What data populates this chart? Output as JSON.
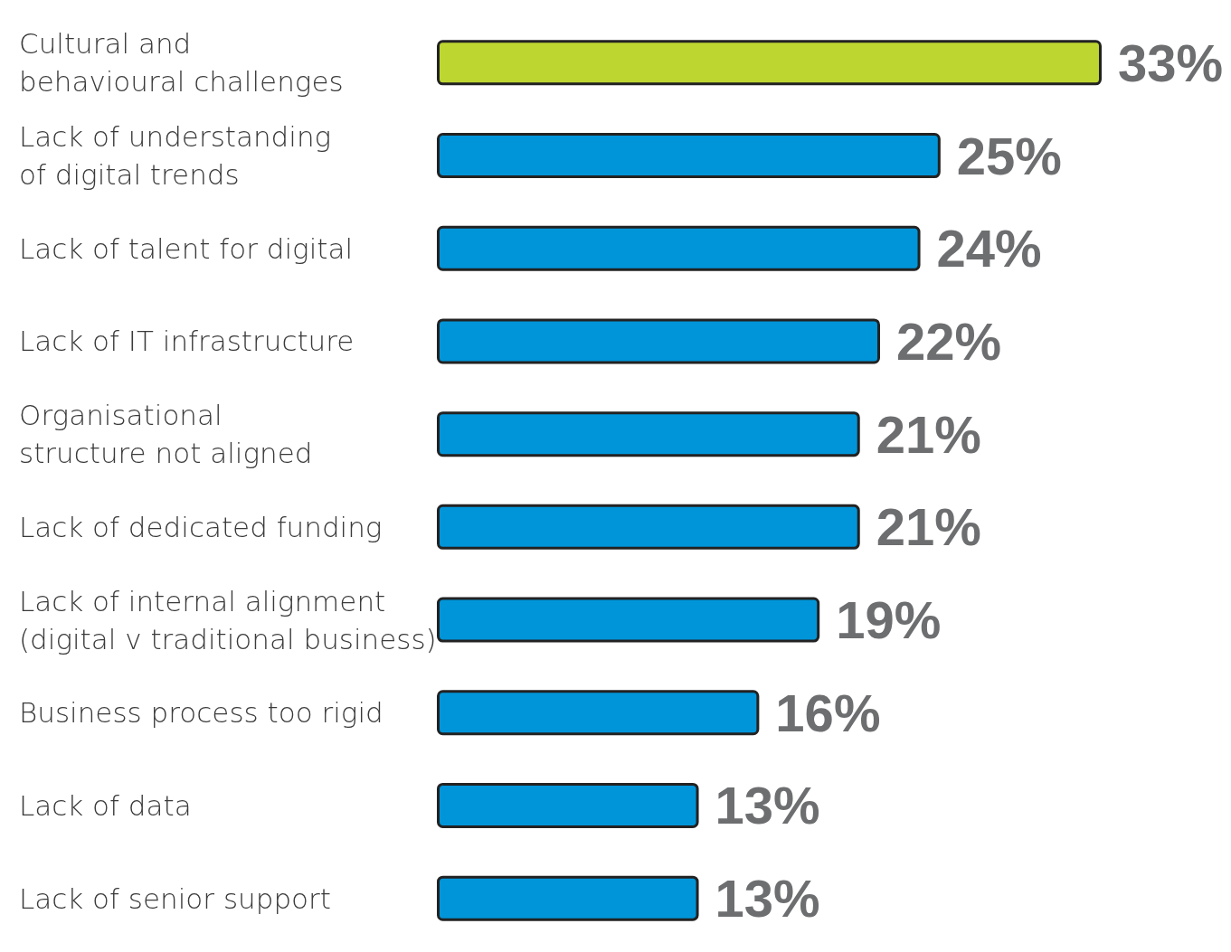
{
  "chart_data": {
    "type": "bar",
    "orientation": "horizontal",
    "categories": [
      "Cultural and\nbehavioural challenges",
      "Lack of understanding\nof digital trends",
      "Lack of talent for digital",
      "Lack of IT infrastructure",
      "Organisational\nstructure not aligned",
      "Lack of dedicated funding",
      "Lack of internal alignment\n(digital v traditional business)",
      "Business process too rigid",
      "Lack of data",
      "Lack of senior support"
    ],
    "values": [
      33,
      25,
      24,
      22,
      21,
      21,
      19,
      16,
      13,
      13
    ],
    "colors": [
      "#bed630",
      "#0095d9",
      "#0095d9",
      "#0095d9",
      "#0095d9",
      "#0095d9",
      "#0095d9",
      "#0095d9",
      "#0095d9",
      "#0095d9"
    ],
    "value_labels": [
      "33%",
      "25%",
      "24%",
      "22%",
      "21%",
      "21%",
      "19%",
      "16%",
      "13%",
      "13%"
    ]
  }
}
